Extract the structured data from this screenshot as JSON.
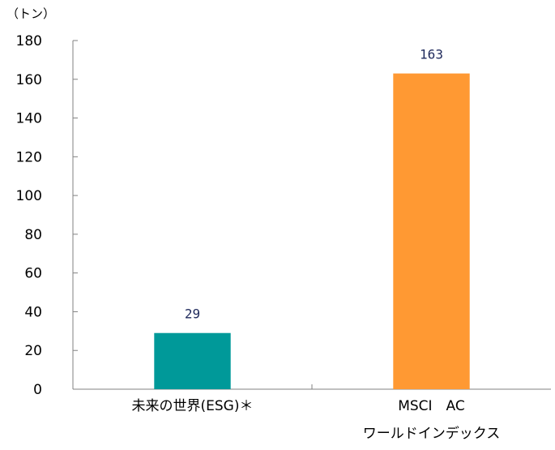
{
  "chart_data": {
    "type": "bar",
    "unit_label": "（トン）",
    "categories": [
      [
        "未来の世界(ESG)＊"
      ],
      [
        "MSCI　AC",
        "ワールドインデックス"
      ]
    ],
    "values": [
      29,
      163
    ],
    "data_labels": [
      "29",
      "163"
    ],
    "bar_colors": [
      "#009999",
      "#ff9933"
    ],
    "ylim": [
      0,
      180
    ],
    "yticks": [
      0,
      20,
      40,
      60,
      80,
      100,
      120,
      140,
      160,
      180
    ],
    "ytick_labels": [
      "0",
      "20",
      "40",
      "60",
      "80",
      "100",
      "120",
      "140",
      "160",
      "180"
    ],
    "axis_color": "#808080",
    "data_label_color": "#1f2a5c",
    "grid": false,
    "legend": "none"
  }
}
